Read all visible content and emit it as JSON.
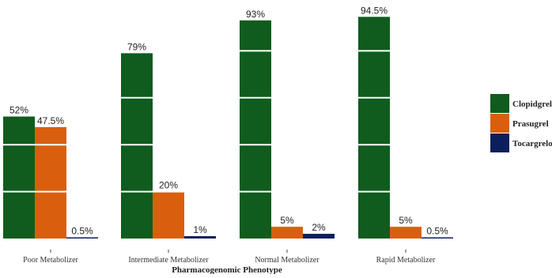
{
  "chart_data": {
    "type": "bar",
    "title": "",
    "xlabel": "Pharmacogenomic Phenotype",
    "ylabel": "",
    "ylim": [
      0,
      100
    ],
    "grid": "horizontal white gridlines over bars",
    "legend_placement": "right",
    "categories": [
      "Poor Metabolizer",
      "Intermediate Metabolizer",
      "Normal Metabolizer",
      "Rapid Metabolizer"
    ],
    "series": [
      {
        "name": "Clopidgrel",
        "color": "#0f5c1e",
        "values": [
          52,
          79,
          93,
          94.5
        ],
        "labels": [
          "52%",
          "79%",
          "93%",
          "94.5%"
        ]
      },
      {
        "name": "Prasugrel",
        "color": "#d95f0e",
        "values": [
          47.5,
          20,
          5,
          5
        ],
        "labels": [
          "47.5%",
          "20%",
          "5%",
          "5%"
        ]
      },
      {
        "name": "Tocargrelor",
        "color": "#0b1f5c",
        "values": [
          0.5,
          1,
          2,
          0.5
        ],
        "labels": [
          "0.5%",
          "1%",
          "2%",
          "0.5%"
        ]
      }
    ]
  }
}
